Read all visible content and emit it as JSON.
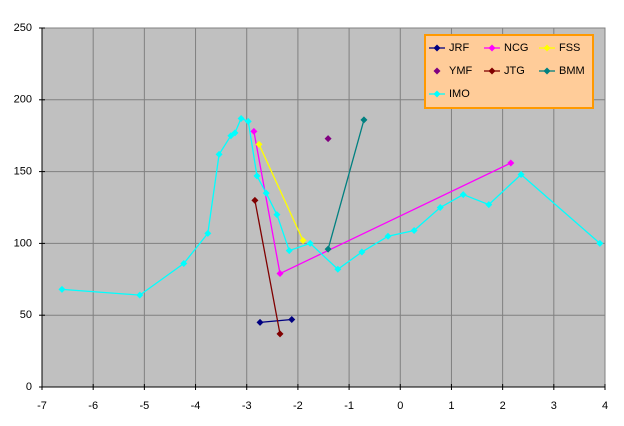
{
  "chart_data": {
    "type": "scatter",
    "xlim": [
      -7,
      4
    ],
    "xticks": [
      -7,
      -6,
      -5,
      -4,
      -3,
      -2,
      -1,
      0,
      1,
      2,
      3,
      4
    ],
    "ylim": [
      0,
      250
    ],
    "yticks": [
      0,
      50,
      100,
      150,
      200,
      250
    ],
    "grid": true,
    "legend_position": "top-right",
    "series": [
      {
        "name": "JRF",
        "color": "#000080",
        "show_line": true,
        "x": [
          -2.74,
          -2.12
        ],
        "values": [
          45,
          47
        ]
      },
      {
        "name": "NCG",
        "color": "#ff00ff",
        "show_line": true,
        "x": [
          -2.86,
          -2.35,
          2.16
        ],
        "values": [
          178,
          79,
          156
        ]
      },
      {
        "name": "FSS",
        "color": "#ffff00",
        "show_line": true,
        "x": [
          -2.76,
          -1.9
        ],
        "values": [
          169,
          102
        ]
      },
      {
        "name": "YMF",
        "color": "#800080",
        "show_line": false,
        "x": [
          -1.41
        ],
        "values": [
          173
        ]
      },
      {
        "name": "JTG",
        "color": "#800000",
        "show_line": true,
        "x": [
          -2.84,
          -2.35
        ],
        "values": [
          130,
          37
        ]
      },
      {
        "name": "BMM",
        "color": "#008080",
        "show_line": true,
        "x": [
          -1.41,
          -0.71
        ],
        "values": [
          96,
          186
        ]
      },
      {
        "name": "IMO",
        "color": "#00ffff",
        "show_line": true,
        "x": [
          -6.61,
          -5.09,
          -4.23,
          -3.76,
          -3.54,
          -3.31,
          -3.23,
          -3.11,
          -2.97,
          -2.8,
          -2.62,
          -2.41,
          -2.17,
          -1.76,
          -1.22,
          -0.75,
          -0.24,
          0.27,
          0.78,
          1.23,
          1.73,
          2.36,
          3.9
        ],
        "values": [
          68,
          64,
          86,
          107,
          162,
          175,
          177,
          187,
          185,
          147,
          135,
          120,
          95,
          100,
          82,
          94,
          105,
          109,
          125,
          134,
          127,
          148,
          100
        ]
      }
    ]
  }
}
